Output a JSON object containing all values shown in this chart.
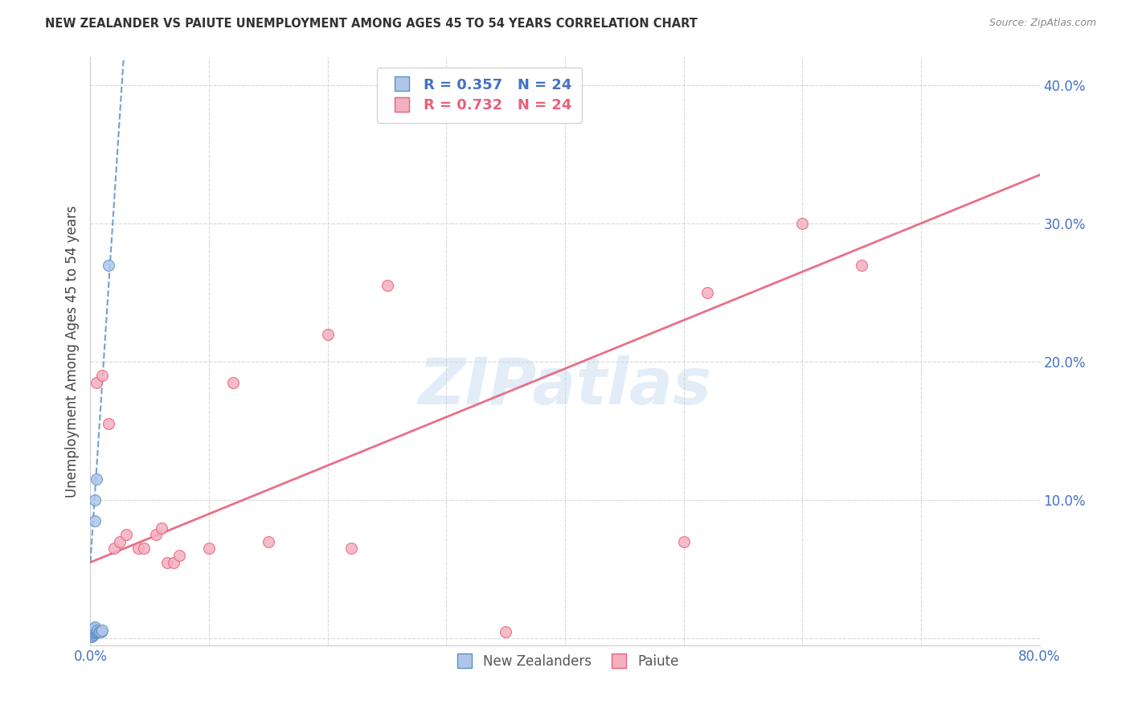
{
  "title": "NEW ZEALANDER VS PAIUTE UNEMPLOYMENT AMONG AGES 45 TO 54 YEARS CORRELATION CHART",
  "source": "Source: ZipAtlas.com",
  "ylabel": "Unemployment Among Ages 45 to 54 years",
  "xlim": [
    0,
    0.8
  ],
  "ylim": [
    -0.005,
    0.42
  ],
  "xticks": [
    0.0,
    0.1,
    0.2,
    0.3,
    0.4,
    0.5,
    0.6,
    0.7,
    0.8
  ],
  "xticklabels": [
    "0.0%",
    "",
    "",
    "",
    "",
    "",
    "",
    "",
    "80.0%"
  ],
  "yticks": [
    0.0,
    0.1,
    0.2,
    0.3,
    0.4
  ],
  "yticklabels": [
    "",
    "10.0%",
    "20.0%",
    "30.0%",
    "40.0%"
  ],
  "nz_R": "0.357",
  "nz_N": "24",
  "paiute_R": "0.732",
  "paiute_N": "24",
  "nz_color": "#aec6e8",
  "paiute_color": "#f4b0c0",
  "nz_edge_color": "#5b8fc9",
  "paiute_edge_color": "#e8607a",
  "watermark": "ZIPatlas",
  "nz_scatter_x": [
    0.001,
    0.002,
    0.002,
    0.002,
    0.002,
    0.002,
    0.003,
    0.003,
    0.003,
    0.003,
    0.003,
    0.004,
    0.004,
    0.004,
    0.005,
    0.005,
    0.005,
    0.006,
    0.006,
    0.007,
    0.008,
    0.009,
    0.01,
    0.015
  ],
  "nz_scatter_y": [
    0.001,
    0.002,
    0.003,
    0.004,
    0.005,
    0.006,
    0.003,
    0.004,
    0.005,
    0.006,
    0.007,
    0.008,
    0.085,
    0.1,
    0.004,
    0.005,
    0.115,
    0.005,
    0.006,
    0.005,
    0.005,
    0.005,
    0.006,
    0.27
  ],
  "paiute_scatter_x": [
    0.005,
    0.01,
    0.015,
    0.02,
    0.025,
    0.03,
    0.04,
    0.045,
    0.055,
    0.06,
    0.065,
    0.07,
    0.075,
    0.1,
    0.12,
    0.15,
    0.2,
    0.22,
    0.25,
    0.35,
    0.5,
    0.52,
    0.6,
    0.65
  ],
  "paiute_scatter_y": [
    0.185,
    0.19,
    0.155,
    0.065,
    0.07,
    0.075,
    0.065,
    0.065,
    0.075,
    0.08,
    0.055,
    0.055,
    0.06,
    0.065,
    0.185,
    0.07,
    0.22,
    0.065,
    0.255,
    0.005,
    0.07,
    0.25,
    0.3,
    0.27
  ],
  "nz_trend_x": [
    0.0,
    0.028
  ],
  "nz_trend_y": [
    0.055,
    0.42
  ],
  "paiute_trend_x": [
    0.0,
    0.8
  ],
  "paiute_trend_y": [
    0.055,
    0.335
  ],
  "legend_nz_text": "R = 0.357   N = 24",
  "legend_paiute_text": "R = 0.732   N = 24",
  "legend_text_color_nz": "#4472c4",
  "legend_text_color_paiute": "#e8607a",
  "scatter_size": 100,
  "grid_color": "#d8d8d8",
  "spine_color": "#cccccc",
  "tick_color": "#4472c4",
  "title_color": "#333333",
  "source_color": "#888888",
  "ylabel_color": "#444444"
}
